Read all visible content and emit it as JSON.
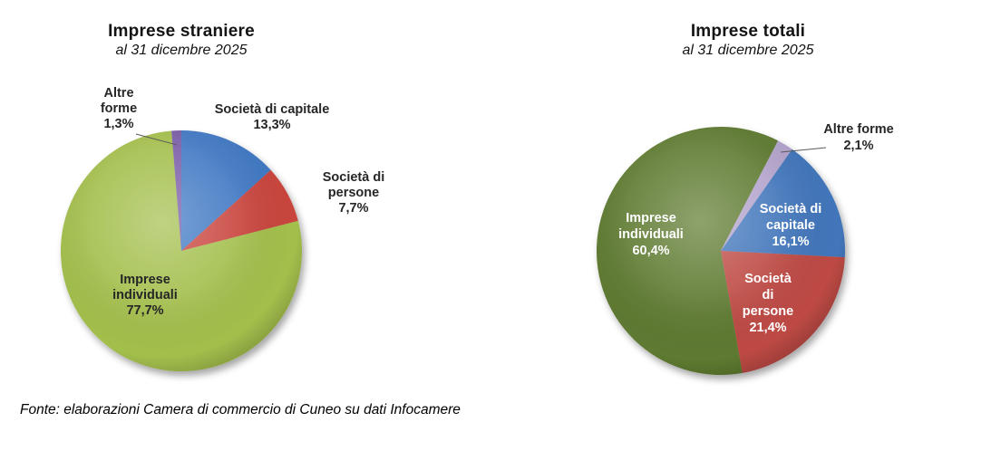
{
  "page": {
    "background": "#ffffff",
    "footer": "Fonte: elaborazioni Camera di commercio di Cuneo su dati Infocamere"
  },
  "chart_data": [
    {
      "type": "pie",
      "title": "Imprese straniere",
      "subtitle": "al 31 dicembre 2025",
      "values_are": "percent",
      "direction": "clockwise",
      "start_angle_deg": 0,
      "legend": "none",
      "labels_position": "outside-callouts-and-inside",
      "slices": [
        {
          "name": "Società di capitale",
          "value": 13.3,
          "pct_label": "13,3%",
          "color": "#4179C4",
          "label_color": "#262626",
          "label_lines": [
            "Società di capitale",
            "13,3%"
          ]
        },
        {
          "name": "Società di persone",
          "value": 7.7,
          "pct_label": "7,7%",
          "color": "#C9453E",
          "label_color": "#262626",
          "label_lines": [
            "Società di",
            "persone",
            "7,7%"
          ]
        },
        {
          "name": "Imprese individuali",
          "value": 77.7,
          "pct_label": "77,7%",
          "color": "#A3BF4C",
          "label_color": "#262626",
          "label_lines": [
            "Imprese",
            "individuali",
            "77,7%"
          ]
        },
        {
          "name": "Altre forme",
          "value": 1.3,
          "pct_label": "1,3%",
          "color": "#7A5DA8",
          "label_color": "#262626",
          "label_lines": [
            "Altre",
            "forme",
            "1,3%"
          ],
          "leader_line": true
        }
      ]
    },
    {
      "type": "pie",
      "title": "Imprese totali",
      "subtitle": "al 31 dicembre 2025",
      "values_are": "percent",
      "direction": "clockwise",
      "start_angle_deg": 35,
      "legend": "none",
      "labels_position": "outside-callouts-and-inside",
      "slices": [
        {
          "name": "Società di capitale",
          "value": 16.1,
          "pct_label": "16,1%",
          "color": "#4276BB",
          "label_color": "#ffffff",
          "label_lines": [
            "Società di",
            "capitale",
            "16,1%"
          ]
        },
        {
          "name": "Società di persone",
          "value": 21.4,
          "pct_label": "21,4%",
          "color": "#BE4A44",
          "label_color": "#ffffff",
          "label_lines": [
            "Società",
            "di",
            "persone",
            "21,4%"
          ]
        },
        {
          "name": "Imprese individuali",
          "value": 60.4,
          "pct_label": "60,4%",
          "color": "#5E7A30",
          "label_color": "#ffffff",
          "label_lines": [
            "Imprese",
            "individuali",
            "60,4%"
          ]
        },
        {
          "name": "Altre forme",
          "value": 2.1,
          "pct_label": "2,1%",
          "color": "#B3A3CC",
          "label_color": "#262626",
          "label_lines": [
            "Altre forme",
            "2,1%"
          ],
          "leader_line": true
        }
      ]
    }
  ]
}
